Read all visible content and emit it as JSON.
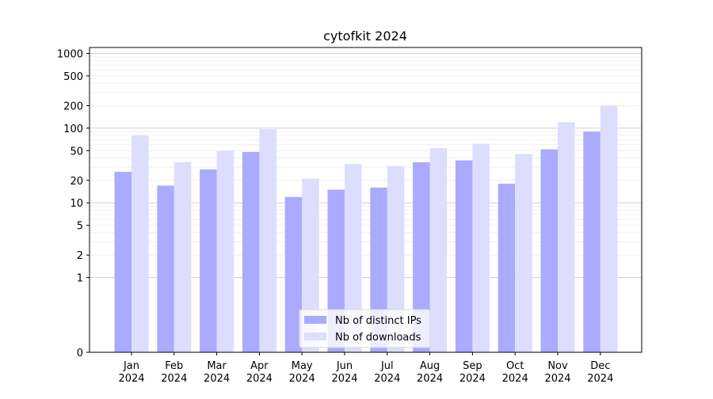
{
  "chart_data": {
    "type": "bar",
    "title": "cytofkit 2024",
    "xlabel": "",
    "ylabel": "",
    "yscale": "symlog",
    "ylim": [
      0,
      1200
    ],
    "grid": true,
    "legend_position": "lower center",
    "categories": [
      "Jan\n2024",
      "Feb\n2024",
      "Mar\n2024",
      "Apr\n2024",
      "May\n2024",
      "Jun\n2024",
      "Jul\n2024",
      "Aug\n2024",
      "Sep\n2024",
      "Oct\n2024",
      "Nov\n2024",
      "Dec\n2024"
    ],
    "y_ticks": [
      0,
      1,
      2,
      5,
      10,
      20,
      50,
      100,
      200,
      500,
      1000
    ],
    "y_tick_labels": [
      "0",
      "1",
      "2",
      "5",
      "10",
      "20",
      "50",
      "100",
      "200",
      "500",
      "1000"
    ],
    "series": [
      {
        "name": "Nb of distinct IPs",
        "color": "#aaaaff",
        "values": [
          26,
          17,
          28,
          48,
          12,
          15,
          16,
          35,
          37,
          18,
          52,
          90
        ]
      },
      {
        "name": "Nb of downloads",
        "color": "#ddddff",
        "values": [
          80,
          35,
          50,
          97,
          21,
          33,
          31,
          54,
          62,
          45,
          120,
          200
        ]
      }
    ]
  }
}
